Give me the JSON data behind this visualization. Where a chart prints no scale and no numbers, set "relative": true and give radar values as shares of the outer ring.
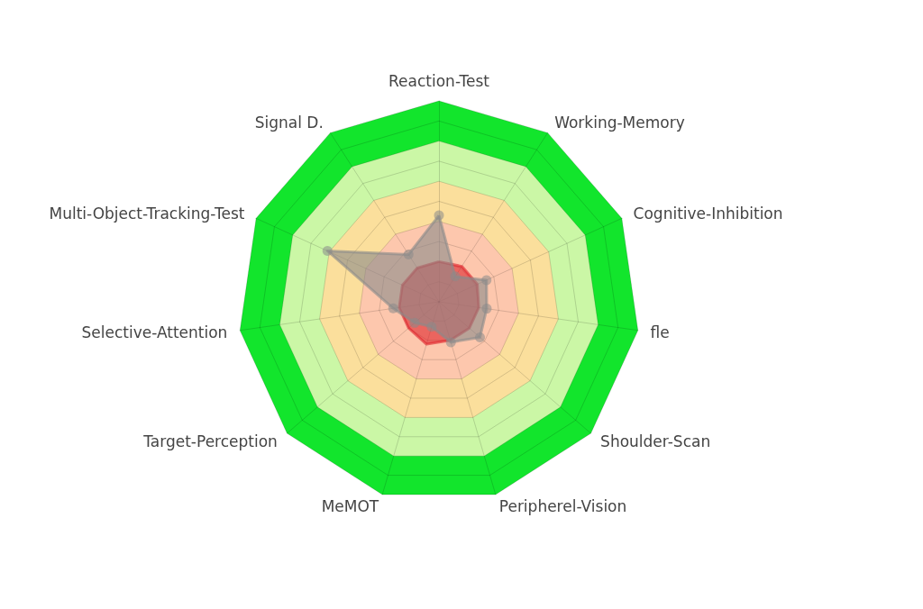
{
  "chart_data": {
    "type": "radar",
    "relative": true,
    "categories": [
      "Reaction-Test",
      "Working-Memory",
      "Cognitive-Inhibition",
      "fle",
      "Shoulder-Scan",
      "Peripherel-Vision",
      "MeMOT",
      "Target-Perception",
      "Selective-Attention",
      "Multi-Object-Tracking-Test",
      "Signal D."
    ],
    "series": [
      {
        "color": "#e0232b",
        "marker": "none",
        "values": [
          0.2,
          0.21,
          0.21,
          0.2,
          0.2,
          0.2,
          0.22,
          0.2,
          0.2,
          0.2,
          0.2
        ]
      },
      {
        "color": "#8a8a8a",
        "marker": "circle",
        "values": [
          0.43,
          0.15,
          0.26,
          0.24,
          0.27,
          0.21,
          0.13,
          0.16,
          0.23,
          0.61,
          0.28
        ]
      }
    ],
    "grid": true,
    "legend": false
  }
}
